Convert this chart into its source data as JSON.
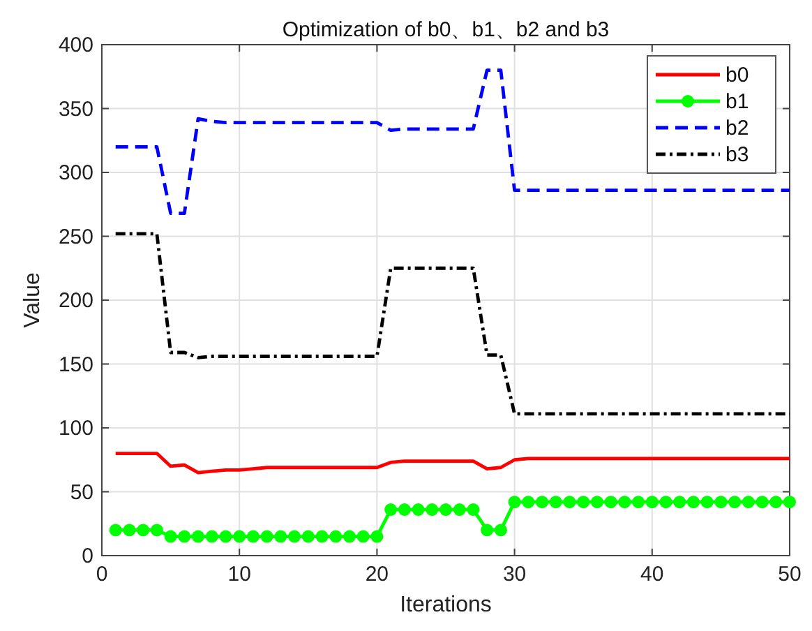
{
  "chart_data": {
    "type": "line",
    "title": "Optimization of b0、b1、b2 and b3",
    "xlabel": "Iterations",
    "ylabel": "Value",
    "x": [
      1,
      2,
      3,
      4,
      5,
      6,
      7,
      8,
      9,
      10,
      11,
      12,
      13,
      14,
      15,
      16,
      17,
      18,
      19,
      20,
      21,
      22,
      23,
      24,
      25,
      26,
      27,
      28,
      29,
      30,
      31,
      32,
      33,
      34,
      35,
      36,
      37,
      38,
      39,
      40,
      41,
      42,
      43,
      44,
      45,
      46,
      47,
      48,
      49,
      50
    ],
    "series": [
      {
        "name": "b0",
        "color": "#ff0000",
        "line_style": "solid",
        "marker": "none",
        "values": [
          80,
          80,
          80,
          80,
          70,
          71,
          65,
          66,
          67,
          67,
          68,
          69,
          69,
          69,
          69,
          69,
          69,
          69,
          69,
          69,
          73,
          74,
          74,
          74,
          74,
          74,
          74,
          68,
          69,
          75,
          76,
          76,
          76,
          76,
          76,
          76,
          76,
          76,
          76,
          76,
          76,
          76,
          76,
          76,
          76,
          76,
          76,
          76,
          76,
          76
        ]
      },
      {
        "name": "b1",
        "color": "#00ff00",
        "line_style": "solid",
        "marker": "circle",
        "values": [
          20,
          20,
          20,
          20,
          15,
          15,
          15,
          15,
          15,
          15,
          15,
          15,
          15,
          15,
          15,
          15,
          15,
          15,
          15,
          15,
          36,
          36,
          36,
          36,
          36,
          36,
          36,
          20,
          20,
          42,
          42,
          42,
          42,
          42,
          42,
          42,
          42,
          42,
          42,
          42,
          42,
          42,
          42,
          42,
          42,
          42,
          42,
          42,
          42,
          42
        ]
      },
      {
        "name": "b2",
        "color": "#0000ff",
        "line_style": "dashed",
        "marker": "none",
        "values": [
          320,
          320,
          320,
          320,
          268,
          268,
          342,
          340,
          339,
          339,
          339,
          339,
          339,
          339,
          339,
          339,
          339,
          339,
          339,
          339,
          333,
          334,
          334,
          334,
          334,
          334,
          334,
          380,
          380,
          286,
          286,
          286,
          286,
          286,
          286,
          286,
          286,
          286,
          286,
          286,
          286,
          286,
          286,
          286,
          286,
          286,
          286,
          286,
          286,
          286
        ]
      },
      {
        "name": "b3",
        "color": "#000000",
        "line_style": "dashdot",
        "marker": "none",
        "values": [
          252,
          252,
          252,
          252,
          159,
          159,
          155,
          156,
          156,
          156,
          156,
          156,
          156,
          156,
          156,
          156,
          156,
          156,
          156,
          156,
          225,
          225,
          225,
          225,
          225,
          225,
          225,
          157,
          157,
          111,
          111,
          111,
          111,
          111,
          111,
          111,
          111,
          111,
          111,
          111,
          111,
          111,
          111,
          111,
          111,
          111,
          111,
          111,
          111,
          111
        ]
      }
    ],
    "xlim": [
      0,
      50
    ],
    "xticks": [
      0,
      10,
      20,
      30,
      40,
      50
    ],
    "ylim": [
      0,
      400
    ],
    "yticks": [
      0,
      50,
      100,
      150,
      200,
      250,
      300,
      350,
      400
    ],
    "grid": true,
    "legend": "top right"
  }
}
